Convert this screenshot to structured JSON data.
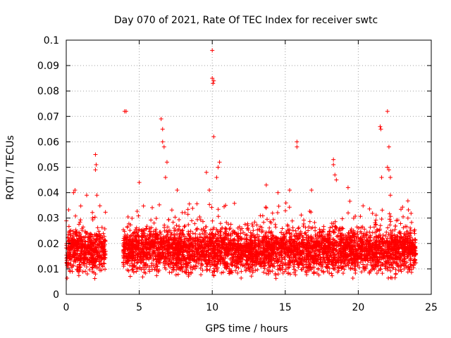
{
  "chart_data": {
    "type": "scatter",
    "title": "Day 070 of 2021, Rate Of TEC Index for receiver swtc",
    "xlabel": "GPS time / hours",
    "ylabel": "ROTI / TECUs",
    "xlim": [
      0,
      25
    ],
    "ylim": [
      0,
      0.1
    ],
    "xticks": [
      0,
      5,
      10,
      15,
      20,
      25
    ],
    "yticks": [
      0,
      0.01,
      0.02,
      0.03,
      0.04,
      0.05,
      0.06,
      0.07,
      0.08,
      0.09,
      0.1
    ],
    "xtick_labels": [
      "0",
      "5",
      "10",
      "15",
      "20",
      "25"
    ],
    "ytick_labels": [
      "0",
      "0.01",
      "0.02",
      "0.03",
      "0.04",
      "0.05",
      "0.06",
      "0.07",
      "0.08",
      "0.09",
      "0.1"
    ],
    "grid": true,
    "marker": "+",
    "color": "#ff0000",
    "data_gap_hours": [
      2.7,
      3.9
    ],
    "typical_range": [
      0.005,
      0.025
    ],
    "outliers": [
      [
        0.5,
        0.04
      ],
      [
        0.6,
        0.041
      ],
      [
        1.4,
        0.039
      ],
      [
        2.0,
        0.055
      ],
      [
        2.0,
        0.049
      ],
      [
        2.05,
        0.051
      ],
      [
        2.1,
        0.039
      ],
      [
        4.0,
        0.072
      ],
      [
        4.1,
        0.072
      ],
      [
        5.0,
        0.044
      ],
      [
        6.5,
        0.069
      ],
      [
        6.6,
        0.065
      ],
      [
        6.6,
        0.06
      ],
      [
        6.7,
        0.058
      ],
      [
        6.9,
        0.052
      ],
      [
        6.8,
        0.046
      ],
      [
        7.6,
        0.041
      ],
      [
        9.6,
        0.048
      ],
      [
        9.8,
        0.041
      ],
      [
        10.0,
        0.096
      ],
      [
        10.0,
        0.085
      ],
      [
        10.05,
        0.083
      ],
      [
        10.1,
        0.084
      ],
      [
        10.1,
        0.062
      ],
      [
        10.4,
        0.05
      ],
      [
        10.5,
        0.052
      ],
      [
        10.3,
        0.046
      ],
      [
        13.7,
        0.043
      ],
      [
        14.5,
        0.04
      ],
      [
        15.3,
        0.041
      ],
      [
        15.8,
        0.06
      ],
      [
        15.8,
        0.058
      ],
      [
        16.8,
        0.041
      ],
      [
        18.3,
        0.053
      ],
      [
        18.3,
        0.051
      ],
      [
        18.4,
        0.047
      ],
      [
        18.5,
        0.045
      ],
      [
        19.3,
        0.042
      ],
      [
        21.5,
        0.066
      ],
      [
        21.55,
        0.065
      ],
      [
        21.6,
        0.046
      ],
      [
        22.0,
        0.072
      ],
      [
        22.1,
        0.058
      ],
      [
        22.0,
        0.05
      ],
      [
        22.1,
        0.049
      ],
      [
        22.2,
        0.046
      ],
      [
        22.2,
        0.039
      ],
      [
        23.4,
        0.03
      ]
    ]
  }
}
